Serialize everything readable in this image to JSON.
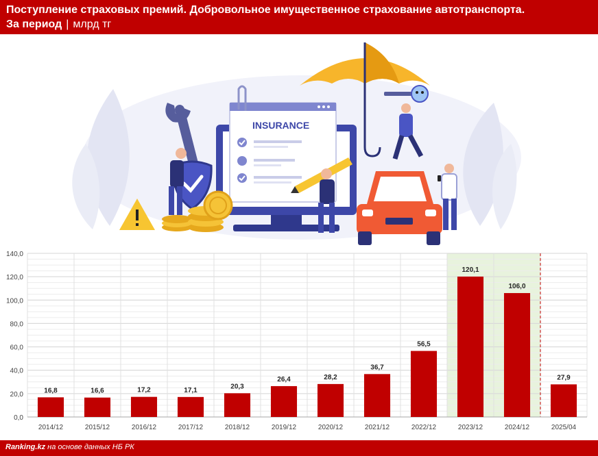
{
  "header": {
    "title": "Поступление страховых премий. Добровольное имущественное страхование автотранспорта.",
    "period_label": "За период",
    "separator": "|",
    "unit": "млрд тг"
  },
  "illustration": {
    "insurance_text": "INSURANCE"
  },
  "footer": {
    "source_site": "Ranking.kz",
    "source_text": "на основе данных НБ РК"
  },
  "colors": {
    "bar": "#c00000",
    "highlight_bg": "#e8f3dd",
    "highlight_border": "#b5d6a0",
    "divider": "#c00000"
  },
  "chart_data": {
    "type": "bar",
    "categories": [
      "2014/12",
      "2015/12",
      "2016/12",
      "2017/12",
      "2018/12",
      "2019/12",
      "2020/12",
      "2021/12",
      "2022/12",
      "2023/12",
      "2024/12",
      "2025/04"
    ],
    "values": [
      16.8,
      16.6,
      17.2,
      17.1,
      20.3,
      26.4,
      28.2,
      36.7,
      56.5,
      120.1,
      106.0,
      27.9
    ],
    "value_labels": [
      "16,8",
      "16,6",
      "17,2",
      "17,1",
      "20,3",
      "26,4",
      "28,2",
      "36,7",
      "56,5",
      "120,1",
      "106,0",
      "27,9"
    ],
    "y_ticks": [
      0,
      20,
      40,
      60,
      80,
      100,
      120,
      140
    ],
    "y_tick_labels": [
      "0,0",
      "20,0",
      "40,0",
      "60,0",
      "80,0",
      "100,0",
      "120,0",
      "140,0"
    ],
    "ylim": [
      0,
      140
    ],
    "highlighted_categories": [
      "2023/12",
      "2024/12"
    ],
    "divider_before": "2025/04",
    "grid": true,
    "title": "",
    "xlabel": "",
    "ylabel": ""
  }
}
